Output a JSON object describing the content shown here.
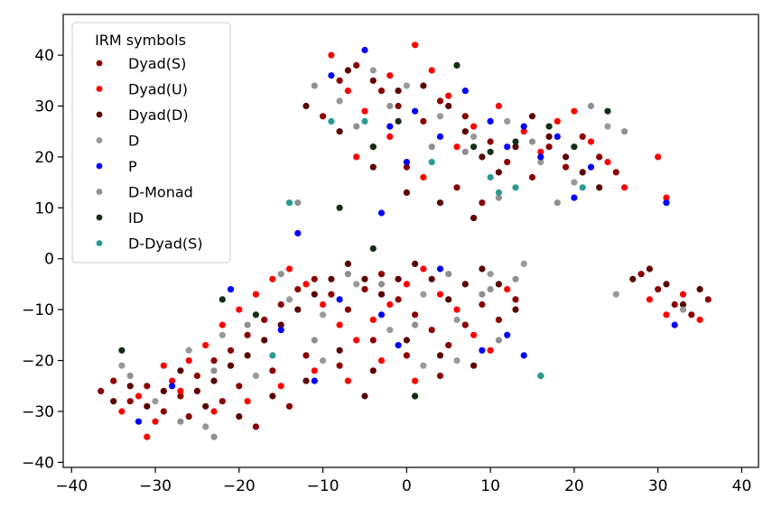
{
  "chart_data": {
    "type": "scatter",
    "title": "",
    "xlabel": "",
    "ylabel": "",
    "xlim": [
      -41,
      42
    ],
    "ylim": [
      -41,
      48
    ],
    "xticks": [
      -40,
      -30,
      -20,
      -10,
      0,
      10,
      20,
      30,
      40
    ],
    "yticks": [
      -40,
      -30,
      -20,
      -10,
      0,
      10,
      20,
      30,
      40
    ],
    "tick_labels_x": [
      "−40",
      "−30",
      "−20",
      "−10",
      "0",
      "10",
      "20",
      "30",
      "40"
    ],
    "tick_labels_y": [
      "−40",
      "−30",
      "−20",
      "−10",
      "0",
      "10",
      "20",
      "30",
      "40"
    ],
    "grid": false,
    "legend": {
      "title": "IRM symbols",
      "placement": "top-left"
    },
    "series": [
      {
        "name": "Dyad(S)",
        "color": "#8b0000",
        "points": [
          [
            -36.5,
            -26
          ],
          [
            -35,
            -24
          ],
          [
            -33,
            -28
          ],
          [
            -31,
            -25
          ],
          [
            -29,
            -30
          ],
          [
            -27,
            -27
          ],
          [
            -25,
            -23
          ],
          [
            -23,
            -20
          ],
          [
            -21,
            -18
          ],
          [
            -19,
            -15
          ],
          [
            -17,
            -12
          ],
          [
            -15,
            -9
          ],
          [
            -13,
            -6
          ],
          [
            -11,
            -4
          ],
          [
            -9,
            -7
          ],
          [
            -7,
            -10
          ],
          [
            -5,
            -6
          ],
          [
            -3,
            -3
          ],
          [
            -1,
            -8
          ],
          [
            1,
            -11
          ],
          [
            3,
            -14
          ],
          [
            5,
            -17
          ],
          [
            7,
            -13
          ],
          [
            9,
            -9
          ],
          [
            11,
            -12
          ],
          [
            13,
            -8
          ],
          [
            -8,
            35
          ],
          [
            -6,
            38
          ],
          [
            -3,
            33
          ],
          [
            -1,
            30
          ],
          [
            2,
            27
          ],
          [
            4,
            31
          ],
          [
            7,
            28
          ],
          [
            10,
            23
          ],
          [
            12,
            19
          ],
          [
            15,
            16
          ],
          [
            17,
            22
          ],
          [
            19,
            18
          ],
          [
            21,
            24
          ],
          [
            23,
            20
          ],
          [
            25,
            17
          ],
          [
            28,
            -3
          ],
          [
            30,
            -6
          ],
          [
            32,
            -9
          ],
          [
            34,
            -11
          ],
          [
            36,
            -8
          ],
          [
            -10,
            28
          ],
          [
            -4,
            22
          ],
          [
            0,
            18
          ],
          [
            6,
            14
          ],
          [
            9,
            11
          ],
          [
            -20,
            -25
          ],
          [
            -16,
            -22
          ],
          [
            -12,
            -19
          ],
          [
            -8,
            -21
          ],
          [
            -4,
            -16
          ],
          [
            0,
            -19
          ],
          [
            4,
            -23
          ],
          [
            -26,
            -31
          ],
          [
            -22,
            -28
          ],
          [
            -18,
            -33
          ],
          [
            -14,
            -29
          ]
        ]
      },
      {
        "name": "Dyad(U)",
        "color": "#ff0000",
        "points": [
          [
            -34,
            -30
          ],
          [
            -32,
            -27
          ],
          [
            -30,
            -32
          ],
          [
            -28,
            -24
          ],
          [
            -26,
            -20
          ],
          [
            -24,
            -17
          ],
          [
            -22,
            -13
          ],
          [
            -20,
            -10
          ],
          [
            -18,
            -7
          ],
          [
            -16,
            -4
          ],
          [
            -14,
            -2
          ],
          [
            -12,
            -5
          ],
          [
            -10,
            -9
          ],
          [
            -8,
            -13
          ],
          [
            -6,
            -16
          ],
          [
            -4,
            -12
          ],
          [
            -2,
            -9
          ],
          [
            0,
            -5
          ],
          [
            2,
            -2
          ],
          [
            4,
            -7
          ],
          [
            6,
            -10
          ],
          [
            8,
            -15
          ],
          [
            10,
            -18
          ],
          [
            12,
            -6
          ],
          [
            -9,
            40
          ],
          [
            -7,
            33
          ],
          [
            -5,
            29
          ],
          [
            -2,
            36
          ],
          [
            1,
            42
          ],
          [
            3,
            37
          ],
          [
            5,
            32
          ],
          [
            8,
            26
          ],
          [
            11,
            30
          ],
          [
            14,
            25
          ],
          [
            16,
            21
          ],
          [
            18,
            27
          ],
          [
            20,
            29
          ],
          [
            22,
            23
          ],
          [
            24,
            19
          ],
          [
            26,
            14
          ],
          [
            29,
            -8
          ],
          [
            31,
            -11
          ],
          [
            33,
            -7
          ],
          [
            35,
            -12
          ],
          [
            -27,
            -26
          ],
          [
            -23,
            -30
          ],
          [
            -19,
            -28
          ],
          [
            -15,
            -25
          ],
          [
            -11,
            -22
          ],
          [
            -7,
            -24
          ],
          [
            -3,
            -20
          ],
          [
            1,
            -24
          ],
          [
            -31,
            -35
          ],
          [
            -29,
            -21
          ],
          [
            -6,
            20
          ],
          [
            -2,
            24
          ],
          [
            2,
            16
          ],
          [
            6,
            22
          ],
          [
            30,
            20
          ],
          [
            31,
            12
          ]
        ]
      },
      {
        "name": "Dyad(D)",
        "color": "#5c0000",
        "points": [
          [
            -35,
            -28
          ],
          [
            -33,
            -25
          ],
          [
            -31,
            -29
          ],
          [
            -29,
            -26
          ],
          [
            -27,
            -22
          ],
          [
            -25,
            -26
          ],
          [
            -23,
            -24
          ],
          [
            -21,
            -21
          ],
          [
            -19,
            -19
          ],
          [
            -17,
            -16
          ],
          [
            -15,
            -13
          ],
          [
            -13,
            -10
          ],
          [
            -11,
            -7
          ],
          [
            -9,
            -4
          ],
          [
            -7,
            -1
          ],
          [
            -5,
            -4
          ],
          [
            -3,
            -7
          ],
          [
            -1,
            -4
          ],
          [
            1,
            -1
          ],
          [
            3,
            -4
          ],
          [
            5,
            -8
          ],
          [
            7,
            -5
          ],
          [
            9,
            -2
          ],
          [
            11,
            -5
          ],
          [
            13,
            -10
          ],
          [
            -7,
            37
          ],
          [
            -4,
            35
          ],
          [
            -1,
            33
          ],
          [
            2,
            34
          ],
          [
            5,
            30
          ],
          [
            7,
            25
          ],
          [
            9,
            20
          ],
          [
            11,
            17
          ],
          [
            13,
            22
          ],
          [
            15,
            28
          ],
          [
            17,
            24
          ],
          [
            19,
            20
          ],
          [
            21,
            17
          ],
          [
            23,
            14
          ],
          [
            27,
            -4
          ],
          [
            29,
            -2
          ],
          [
            31,
            -5
          ],
          [
            33,
            -9
          ],
          [
            35,
            -6
          ],
          [
            -12,
            30
          ],
          [
            -8,
            25
          ],
          [
            -4,
            18
          ],
          [
            0,
            13
          ],
          [
            4,
            11
          ],
          [
            8,
            8
          ],
          [
            -24,
            -29
          ],
          [
            -20,
            -31
          ],
          [
            -16,
            -27
          ],
          [
            -12,
            -24
          ],
          [
            -8,
            -18
          ],
          [
            -4,
            -22
          ],
          [
            0,
            -16
          ],
          [
            4,
            -19
          ],
          [
            8,
            -21
          ],
          [
            -5,
            -27
          ],
          [
            1,
            -27
          ]
        ]
      },
      {
        "name": "D",
        "color": "#999999",
        "points": [
          [
            -34,
            -21
          ],
          [
            -30,
            -28
          ],
          [
            -26,
            -18
          ],
          [
            -22,
            -15
          ],
          [
            -18,
            -11
          ],
          [
            -14,
            -8
          ],
          [
            -10,
            -11
          ],
          [
            -6,
            -5
          ],
          [
            -2,
            -14
          ],
          [
            2,
            -7
          ],
          [
            6,
            -12
          ],
          [
            10,
            -3
          ],
          [
            14,
            -1
          ],
          [
            -8,
            31
          ],
          [
            -4,
            37
          ],
          [
            0,
            34
          ],
          [
            4,
            28
          ],
          [
            8,
            24
          ],
          [
            12,
            27
          ],
          [
            16,
            19
          ],
          [
            20,
            15
          ],
          [
            24,
            26
          ],
          [
            -14,
            11
          ],
          [
            2,
            -21
          ],
          [
            6,
            -20
          ],
          [
            -24,
            -33
          ],
          [
            25,
            -7
          ],
          [
            33,
            -10
          ],
          [
            -18,
            -23
          ],
          [
            -10,
            -20
          ]
        ]
      },
      {
        "name": "P",
        "color": "#0000ff",
        "points": [
          [
            -32,
            -32
          ],
          [
            -28,
            -25
          ],
          [
            -21,
            -6
          ],
          [
            -15,
            -14
          ],
          [
            -11,
            -24
          ],
          [
            -8,
            -8
          ],
          [
            -3,
            -11
          ],
          [
            -1,
            -17
          ],
          [
            4,
            -2
          ],
          [
            9,
            -18
          ],
          [
            12,
            -15
          ],
          [
            14,
            -19
          ],
          [
            -9,
            36
          ],
          [
            -5,
            41
          ],
          [
            -2,
            26
          ],
          [
            1,
            29
          ],
          [
            4,
            24
          ],
          [
            7,
            33
          ],
          [
            10,
            27
          ],
          [
            12,
            22
          ],
          [
            14,
            26
          ],
          [
            16,
            20
          ],
          [
            18,
            24
          ],
          [
            20,
            12
          ],
          [
            22,
            18
          ],
          [
            -3,
            9
          ],
          [
            0,
            19
          ],
          [
            31,
            11
          ],
          [
            32,
            -13
          ],
          [
            -13,
            5
          ]
        ]
      },
      {
        "name": "D-Monad",
        "color": "#8f8f8f",
        "points": [
          [
            -33,
            -23
          ],
          [
            -27,
            -32
          ],
          [
            -23,
            -22
          ],
          [
            -19,
            -13
          ],
          [
            -15,
            -3
          ],
          [
            -11,
            -16
          ],
          [
            -7,
            -3
          ],
          [
            -3,
            -5
          ],
          [
            1,
            -13
          ],
          [
            5,
            -3
          ],
          [
            9,
            -7
          ],
          [
            11,
            -16
          ],
          [
            -11,
            34
          ],
          [
            -6,
            26
          ],
          [
            -2,
            30
          ],
          [
            3,
            22
          ],
          [
            7,
            21
          ],
          [
            11,
            12
          ],
          [
            15,
            23
          ],
          [
            18,
            11
          ],
          [
            22,
            30
          ],
          [
            -23,
            -35
          ],
          [
            -13,
            11
          ],
          [
            10,
            -6
          ],
          [
            13,
            -4
          ],
          [
            26,
            25
          ]
        ]
      },
      {
        "name": "ID",
        "color": "#123012",
        "points": [
          [
            -34,
            -18
          ],
          [
            -22,
            -8
          ],
          [
            -18,
            -11
          ],
          [
            -8,
            10
          ],
          [
            -4,
            22
          ],
          [
            -1,
            27
          ],
          [
            6,
            38
          ],
          [
            8,
            22
          ],
          [
            10,
            21
          ],
          [
            13,
            23
          ],
          [
            17,
            26
          ],
          [
            20,
            22
          ],
          [
            24,
            29
          ],
          [
            1,
            -27
          ],
          [
            16,
            -23
          ],
          [
            -4,
            2
          ]
        ]
      },
      {
        "name": "D-Dyad(S)",
        "color": "#2a9a94",
        "points": [
          [
            -16,
            -19
          ],
          [
            -5,
            27
          ],
          [
            3,
            19
          ],
          [
            10,
            16
          ],
          [
            11,
            13
          ],
          [
            13,
            14
          ],
          [
            16,
            -23
          ],
          [
            21,
            14
          ],
          [
            -14,
            11
          ],
          [
            -9,
            27
          ]
        ]
      }
    ],
    "annotations": []
  }
}
